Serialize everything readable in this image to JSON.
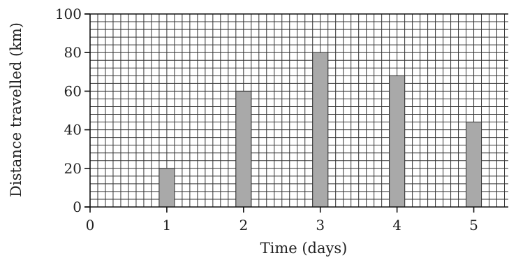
{
  "chart_data": {
    "type": "bar",
    "title": "",
    "xlabel": "Time (days)",
    "ylabel": "Distance travelled (km)",
    "categories": [
      1,
      2,
      3,
      4,
      5
    ],
    "values": [
      20,
      60,
      80,
      68,
      44
    ],
    "xlim": [
      0,
      5.45
    ],
    "ylim": [
      0,
      100
    ],
    "x_ticks": [
      "0",
      "1",
      "2",
      "3",
      "4",
      "5"
    ],
    "y_ticks": [
      "0",
      "20",
      "40",
      "60",
      "80",
      "100"
    ],
    "grid": true,
    "bar_color": "#a9a9a9"
  }
}
